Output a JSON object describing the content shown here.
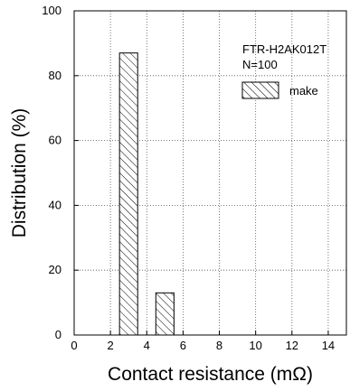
{
  "chart_data": {
    "type": "bar",
    "title": "",
    "xlabel": "Contact resistance (mΩ)",
    "ylabel": "Distribution (%)",
    "xlim": [
      0,
      15
    ],
    "ylim": [
      0,
      100
    ],
    "x_ticks": [
      "0",
      "2",
      "4",
      "6",
      "8",
      "10",
      "12",
      "14"
    ],
    "y_ticks": [
      "0",
      "20",
      "40",
      "60",
      "80",
      "100"
    ],
    "grid": true,
    "annotation": {
      "model": "FTR-H2AK012T",
      "sample": "N=100"
    },
    "legend": {
      "placement": "top-right",
      "entries": [
        "make"
      ]
    },
    "series": [
      {
        "name": "make",
        "pattern": "diagonal-hatch",
        "bars": [
          {
            "x_start": 2.5,
            "x_end": 3.5,
            "value": 87
          },
          {
            "x_start": 4.5,
            "x_end": 5.5,
            "value": 13
          }
        ]
      }
    ]
  }
}
